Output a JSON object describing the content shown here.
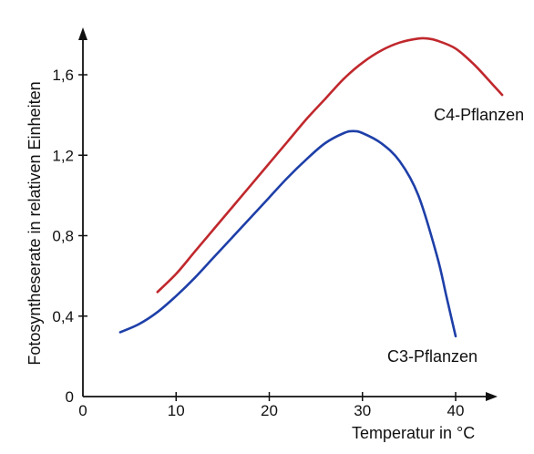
{
  "chart_data": {
    "type": "line",
    "title": "",
    "xlabel": "Temperatur in °C",
    "ylabel": "Fotosyntheserate in relativen Einheiten",
    "xlim": [
      0,
      48
    ],
    "ylim": [
      0,
      1.85
    ],
    "x_ticks": [
      0,
      10,
      20,
      30,
      40
    ],
    "x_tick_labels": [
      "0",
      "10",
      "20",
      "30",
      "40"
    ],
    "y_ticks": [
      0,
      0.4,
      0.8,
      1.2,
      1.6
    ],
    "y_tick_labels": [
      "0",
      "0,4",
      "0,8",
      "1,2",
      "1,6"
    ],
    "grid": false,
    "legend": "none",
    "series": [
      {
        "name": "C4-Pflanzen",
        "color": "#c0282d",
        "x": [
          8,
          10,
          12,
          14,
          16,
          18,
          20,
          22,
          24,
          26,
          28,
          30,
          32,
          34,
          36,
          37,
          38,
          40,
          42,
          44,
          45
        ],
        "y": [
          0.52,
          0.61,
          0.72,
          0.83,
          0.94,
          1.05,
          1.16,
          1.27,
          1.38,
          1.48,
          1.58,
          1.66,
          1.72,
          1.76,
          1.78,
          1.78,
          1.77,
          1.73,
          1.65,
          1.55,
          1.5
        ]
      },
      {
        "name": "C3-Pflanzen",
        "color": "#1e3fa8",
        "x": [
          4,
          6,
          8,
          10,
          12,
          14,
          16,
          18,
          20,
          22,
          24,
          26,
          28,
          29,
          30,
          32,
          34,
          36,
          38,
          39,
          40
        ],
        "y": [
          0.32,
          0.36,
          0.42,
          0.5,
          0.59,
          0.69,
          0.79,
          0.89,
          0.99,
          1.09,
          1.18,
          1.26,
          1.31,
          1.32,
          1.31,
          1.26,
          1.17,
          1.0,
          0.7,
          0.5,
          0.3
        ]
      }
    ]
  }
}
